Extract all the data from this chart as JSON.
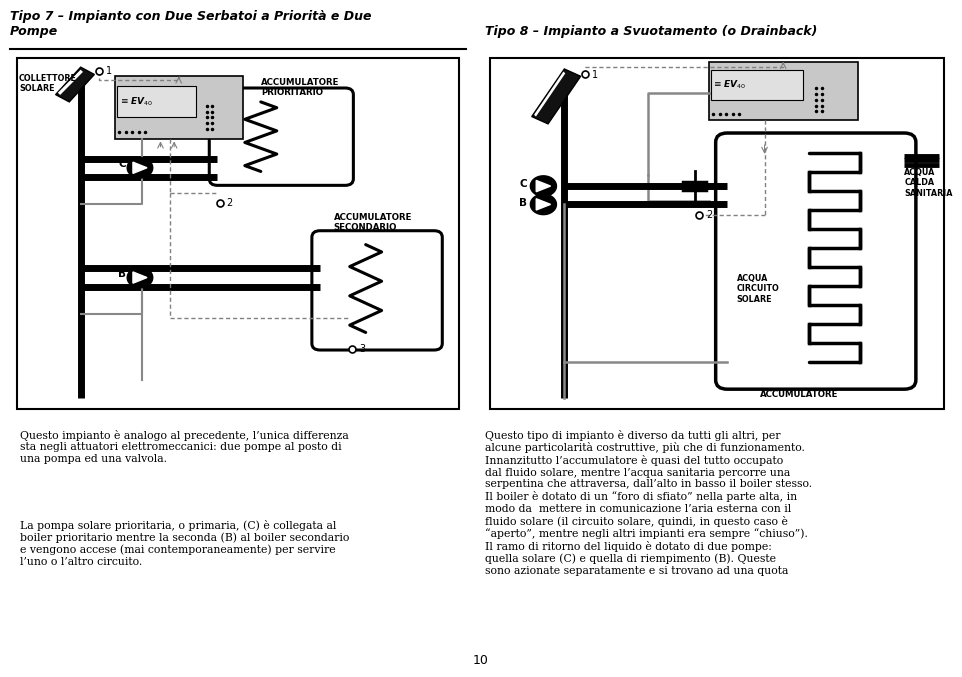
{
  "title_left": "Tipo 7 – Impianto con Due Serbatoi a Priorità e Due\nPompe",
  "title_right": "Tipo 8 – Impianto a Svuotamento (o Drainback)",
  "label_collettore": "COLLETTORE\nSOLARE",
  "label_acc_prior": "ACCUMULATORE\nPRIORITARIO",
  "label_acc_sec": "ACCUMULATORE\nSECONDARIO",
  "label_acc_r": "ACCUMULATORE",
  "label_acqua_cs": "ACQUA\nCIRCUITO\nSOLARE",
  "label_acqua_cal": "ACQUA\nCALDA\nSANITARIA",
  "text_left_1": "Questo impianto è analogo al precedente, l’unica differenza\nsta negli attuatori elettromeccanici: due pompe al posto di\nuna pompa ed una valvola.",
  "text_left_2": "La pompa solare prioritaria, o primaria, (C) è collegata al\nboiler prioritario mentre la seconda (B) al boiler secondario\ne vengono accese (mai contemporaneamente) per servire\nl’uno o l’altro circuito.",
  "text_right": "Questo tipo di impianto è diverso da tutti gli altri, per\nalcune particolarità costruttive, più che di funzionamento.\nInnanzitutto l’accumulatore è quasi del tutto occupato\ndal fluido solare, mentre l’acqua sanitaria percorre una\nserpentina che attraversa, dall’alto in basso il boiler stesso.\nIl boiler è dotato di un “foro di sfiato” nella parte alta, in\nmodo da  mettere in comunicazione l’aria esterna con il\nfluido solare (il circuito solare, quindi, in questo caso è\n“aperto”, mentre negli altri impianti era sempre “chiuso”).\nIl ramo di ritorno del liquido è dotato di due pompe:\nquella solare (C) e quella di riempimento (B). Queste\nsono azionate separatamente e si trovano ad una quota",
  "page_number": "10"
}
